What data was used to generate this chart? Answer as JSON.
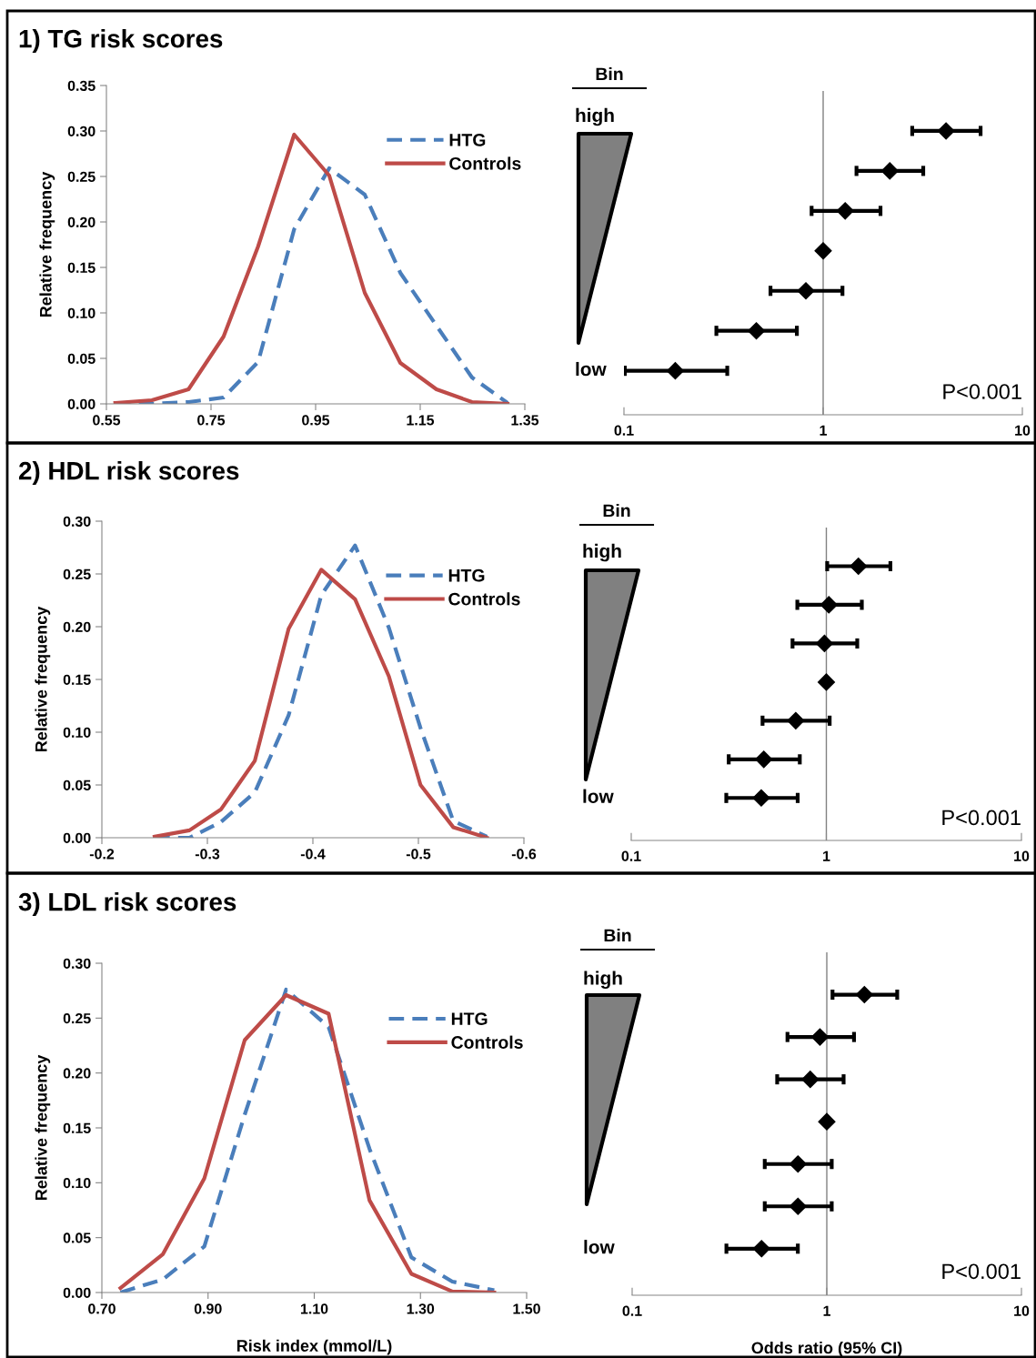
{
  "chart_data": [
    {
      "type": "line",
      "title": "1) TG risk scores",
      "ylabel": "Relative frequency",
      "x": [
        0.567,
        0.637,
        0.707,
        0.774,
        0.84,
        0.909,
        0.976,
        1.044,
        1.112,
        1.181,
        1.249,
        1.317
      ],
      "series": [
        {
          "name": "HTG",
          "color": "#4a7ebb",
          "line_style": "dashed",
          "values": [
            0.0,
            0.0,
            0.002,
            0.007,
            0.046,
            0.192,
            0.259,
            0.23,
            0.144,
            0.086,
            0.029,
            0.001
          ]
        },
        {
          "name": "Controls",
          "color": "#be4b48",
          "line_style": "solid",
          "values": [
            0.001,
            0.004,
            0.016,
            0.074,
            0.173,
            0.296,
            0.251,
            0.122,
            0.045,
            0.016,
            0.002,
            0.0
          ]
        }
      ],
      "xlim": [
        0.55,
        1.35
      ],
      "xticks": [
        0.55,
        0.75,
        0.95,
        1.15,
        1.35
      ],
      "ylim": [
        0,
        0.35
      ],
      "yticks": [
        {
          "value": 0,
          "label": "0.00"
        },
        {
          "value": 0.05,
          "label": "0.05"
        },
        {
          "value": 0.1,
          "label": "0.10"
        },
        {
          "value": 0.15,
          "label": "0.15"
        },
        {
          "value": 0.2,
          "label": "0.20"
        },
        {
          "value": 0.25,
          "label": "0.25"
        },
        {
          "value": 0.3,
          "label": "0.30"
        },
        {
          "value": 0.35,
          "label": "0.35"
        }
      ],
      "legend": "top right",
      "marker": "none",
      "grid": false
    },
    {
      "type": "scatter",
      "orientation": "horizontal",
      "ylabel": "Bin",
      "categories": [
        "high",
        null,
        null,
        null,
        null,
        null,
        "low"
      ],
      "series": [
        {
          "color": "#000000",
          "values": [
            4.14,
            2.16,
            1.29,
            1,
            0.819,
            0.462,
            0.181
          ],
          "errors": [
            [
              2.8,
              6.17
            ],
            [
              1.47,
              3.18
            ],
            [
              0.875,
              1.94
            ],
            null,
            [
              0.544,
              1.25
            ],
            [
              0.291,
              0.738
            ],
            [
              0.101,
              0.33
            ]
          ]
        }
      ],
      "log": "x",
      "xlim": [
        0.1,
        10
      ],
      "xticks": [
        0.1,
        1,
        10
      ],
      "marker": "diamond",
      "grid": false,
      "ref_lines": [
        {
          "axis": "x",
          "value": 1,
          "color": "#808080"
        }
      ],
      "annotations": [
        "P<0.001"
      ]
    },
    {
      "type": "line",
      "title": "2) HDL risk scores",
      "ylabel": "Relative frequency",
      "x": [
        -0.25,
        -0.283,
        -0.313,
        -0.345,
        -0.377,
        -0.408,
        -0.44,
        -0.472,
        -0.502,
        -0.533,
        -0.565
      ],
      "series": [
        {
          "name": "HTG",
          "color": "#4a7ebb",
          "line_style": "dashed",
          "values": [
            0.0,
            0.0,
            0.015,
            0.043,
            0.116,
            0.23,
            0.277,
            0.199,
            0.104,
            0.016,
            0.001
          ]
        },
        {
          "name": "Controls",
          "color": "#be4b48",
          "line_style": "solid",
          "values": [
            0.001,
            0.007,
            0.027,
            0.073,
            0.198,
            0.254,
            0.226,
            0.153,
            0.05,
            0.01,
            0.0
          ]
        }
      ],
      "xlim": [
        -0.2,
        -0.6
      ],
      "xticks": [
        -0.2,
        -0.3,
        -0.4,
        -0.5,
        -0.6
      ],
      "ylim": [
        0,
        0.3
      ],
      "yticks": [
        {
          "value": 0,
          "label": "0.00"
        },
        {
          "value": 0.05,
          "label": "0.05"
        },
        {
          "value": 0.1,
          "label": "0.10"
        },
        {
          "value": 0.15,
          "label": "0.15"
        },
        {
          "value": 0.2,
          "label": "0.20"
        },
        {
          "value": 0.25,
          "label": "0.25"
        },
        {
          "value": 0.3,
          "label": "0.30"
        }
      ],
      "legend": "top right",
      "marker": "none",
      "grid": false
    },
    {
      "type": "scatter",
      "orientation": "horizontal",
      "ylabel": "Bin",
      "categories": [
        "high",
        null,
        null,
        null,
        null,
        null,
        "low"
      ],
      "series": [
        {
          "color": "#000000",
          "values": [
            1.46,
            1.03,
            0.978,
            1,
            0.697,
            0.478,
            0.464
          ],
          "errors": [
            [
              1.01,
              2.13
            ],
            [
              0.71,
              1.52
            ],
            [
              0.671,
              1.44
            ],
            null,
            [
              0.471,
              1.04
            ],
            [
              0.316,
              0.731
            ],
            [
              0.307,
              0.713
            ]
          ]
        }
      ],
      "log": "x",
      "xlim": [
        0.1,
        10
      ],
      "xticks": [
        0.1,
        1,
        10
      ],
      "marker": "diamond",
      "grid": false,
      "ref_lines": [
        {
          "axis": "x",
          "value": 1,
          "color": "#808080"
        }
      ],
      "annotations": [
        "P<0.001"
      ]
    },
    {
      "type": "line",
      "title": "3) LDL risk scores",
      "xlabel": "Risk index (mmol/L)",
      "ylabel": "Relative frequency",
      "x": [
        0.735,
        0.815,
        0.893,
        0.969,
        1.047,
        1.127,
        1.204,
        1.283,
        1.36,
        1.439
      ],
      "series": [
        {
          "name": "HTG",
          "color": "#4a7ebb",
          "line_style": "dashed",
          "values": [
            0.0,
            0.012,
            0.042,
            0.162,
            0.276,
            0.242,
            0.131,
            0.032,
            0.01,
            0.002
          ]
        },
        {
          "name": "Controls",
          "color": "#be4b48",
          "line_style": "solid",
          "values": [
            0.004,
            0.035,
            0.104,
            0.23,
            0.271,
            0.254,
            0.084,
            0.017,
            0.001,
            0.0
          ]
        }
      ],
      "xlim": [
        0.7,
        1.5
      ],
      "xticks": [
        {
          "value": 0.7,
          "label": "0.70"
        },
        {
          "value": 0.9,
          "label": "0.90"
        },
        {
          "value": 1.1,
          "label": "1.10"
        },
        {
          "value": 1.3,
          "label": "1.30"
        },
        {
          "value": 1.5,
          "label": "1.50"
        }
      ],
      "ylim": [
        0,
        0.3
      ],
      "yticks": [
        {
          "value": 0,
          "label": "0.00"
        },
        {
          "value": 0.05,
          "label": "0.05"
        },
        {
          "value": 0.1,
          "label": "0.10"
        },
        {
          "value": 0.15,
          "label": "0.15"
        },
        {
          "value": 0.2,
          "label": "0.20"
        },
        {
          "value": 0.25,
          "label": "0.25"
        },
        {
          "value": 0.3,
          "label": "0.30"
        }
      ],
      "legend": "top right",
      "marker": "none",
      "grid": false
    },
    {
      "type": "scatter",
      "orientation": "horizontal",
      "xlabel": "Odds ratio (95% CI)",
      "ylabel": "Bin",
      "categories": [
        "high",
        null,
        null,
        null,
        null,
        null,
        "low"
      ],
      "series": [
        {
          "color": "#000000",
          "values": [
            1.56,
            0.922,
            0.822,
            1,
            0.711,
            0.711,
            0.462
          ],
          "errors": [
            [
              1.07,
              2.3
            ],
            [
              0.628,
              1.38
            ],
            [
              0.556,
              1.22
            ],
            null,
            [
              0.48,
              1.06
            ],
            [
              0.48,
              1.06
            ],
            [
              0.305,
              0.71
            ]
          ]
        }
      ],
      "log": "x",
      "xlim": [
        0.1,
        10
      ],
      "xticks": [
        0.1,
        1,
        10
      ],
      "marker": "diamond",
      "grid": false,
      "ref_lines": [
        {
          "axis": "x",
          "value": 1,
          "color": "#808080"
        }
      ],
      "annotations": [
        "P<0.001"
      ]
    }
  ]
}
